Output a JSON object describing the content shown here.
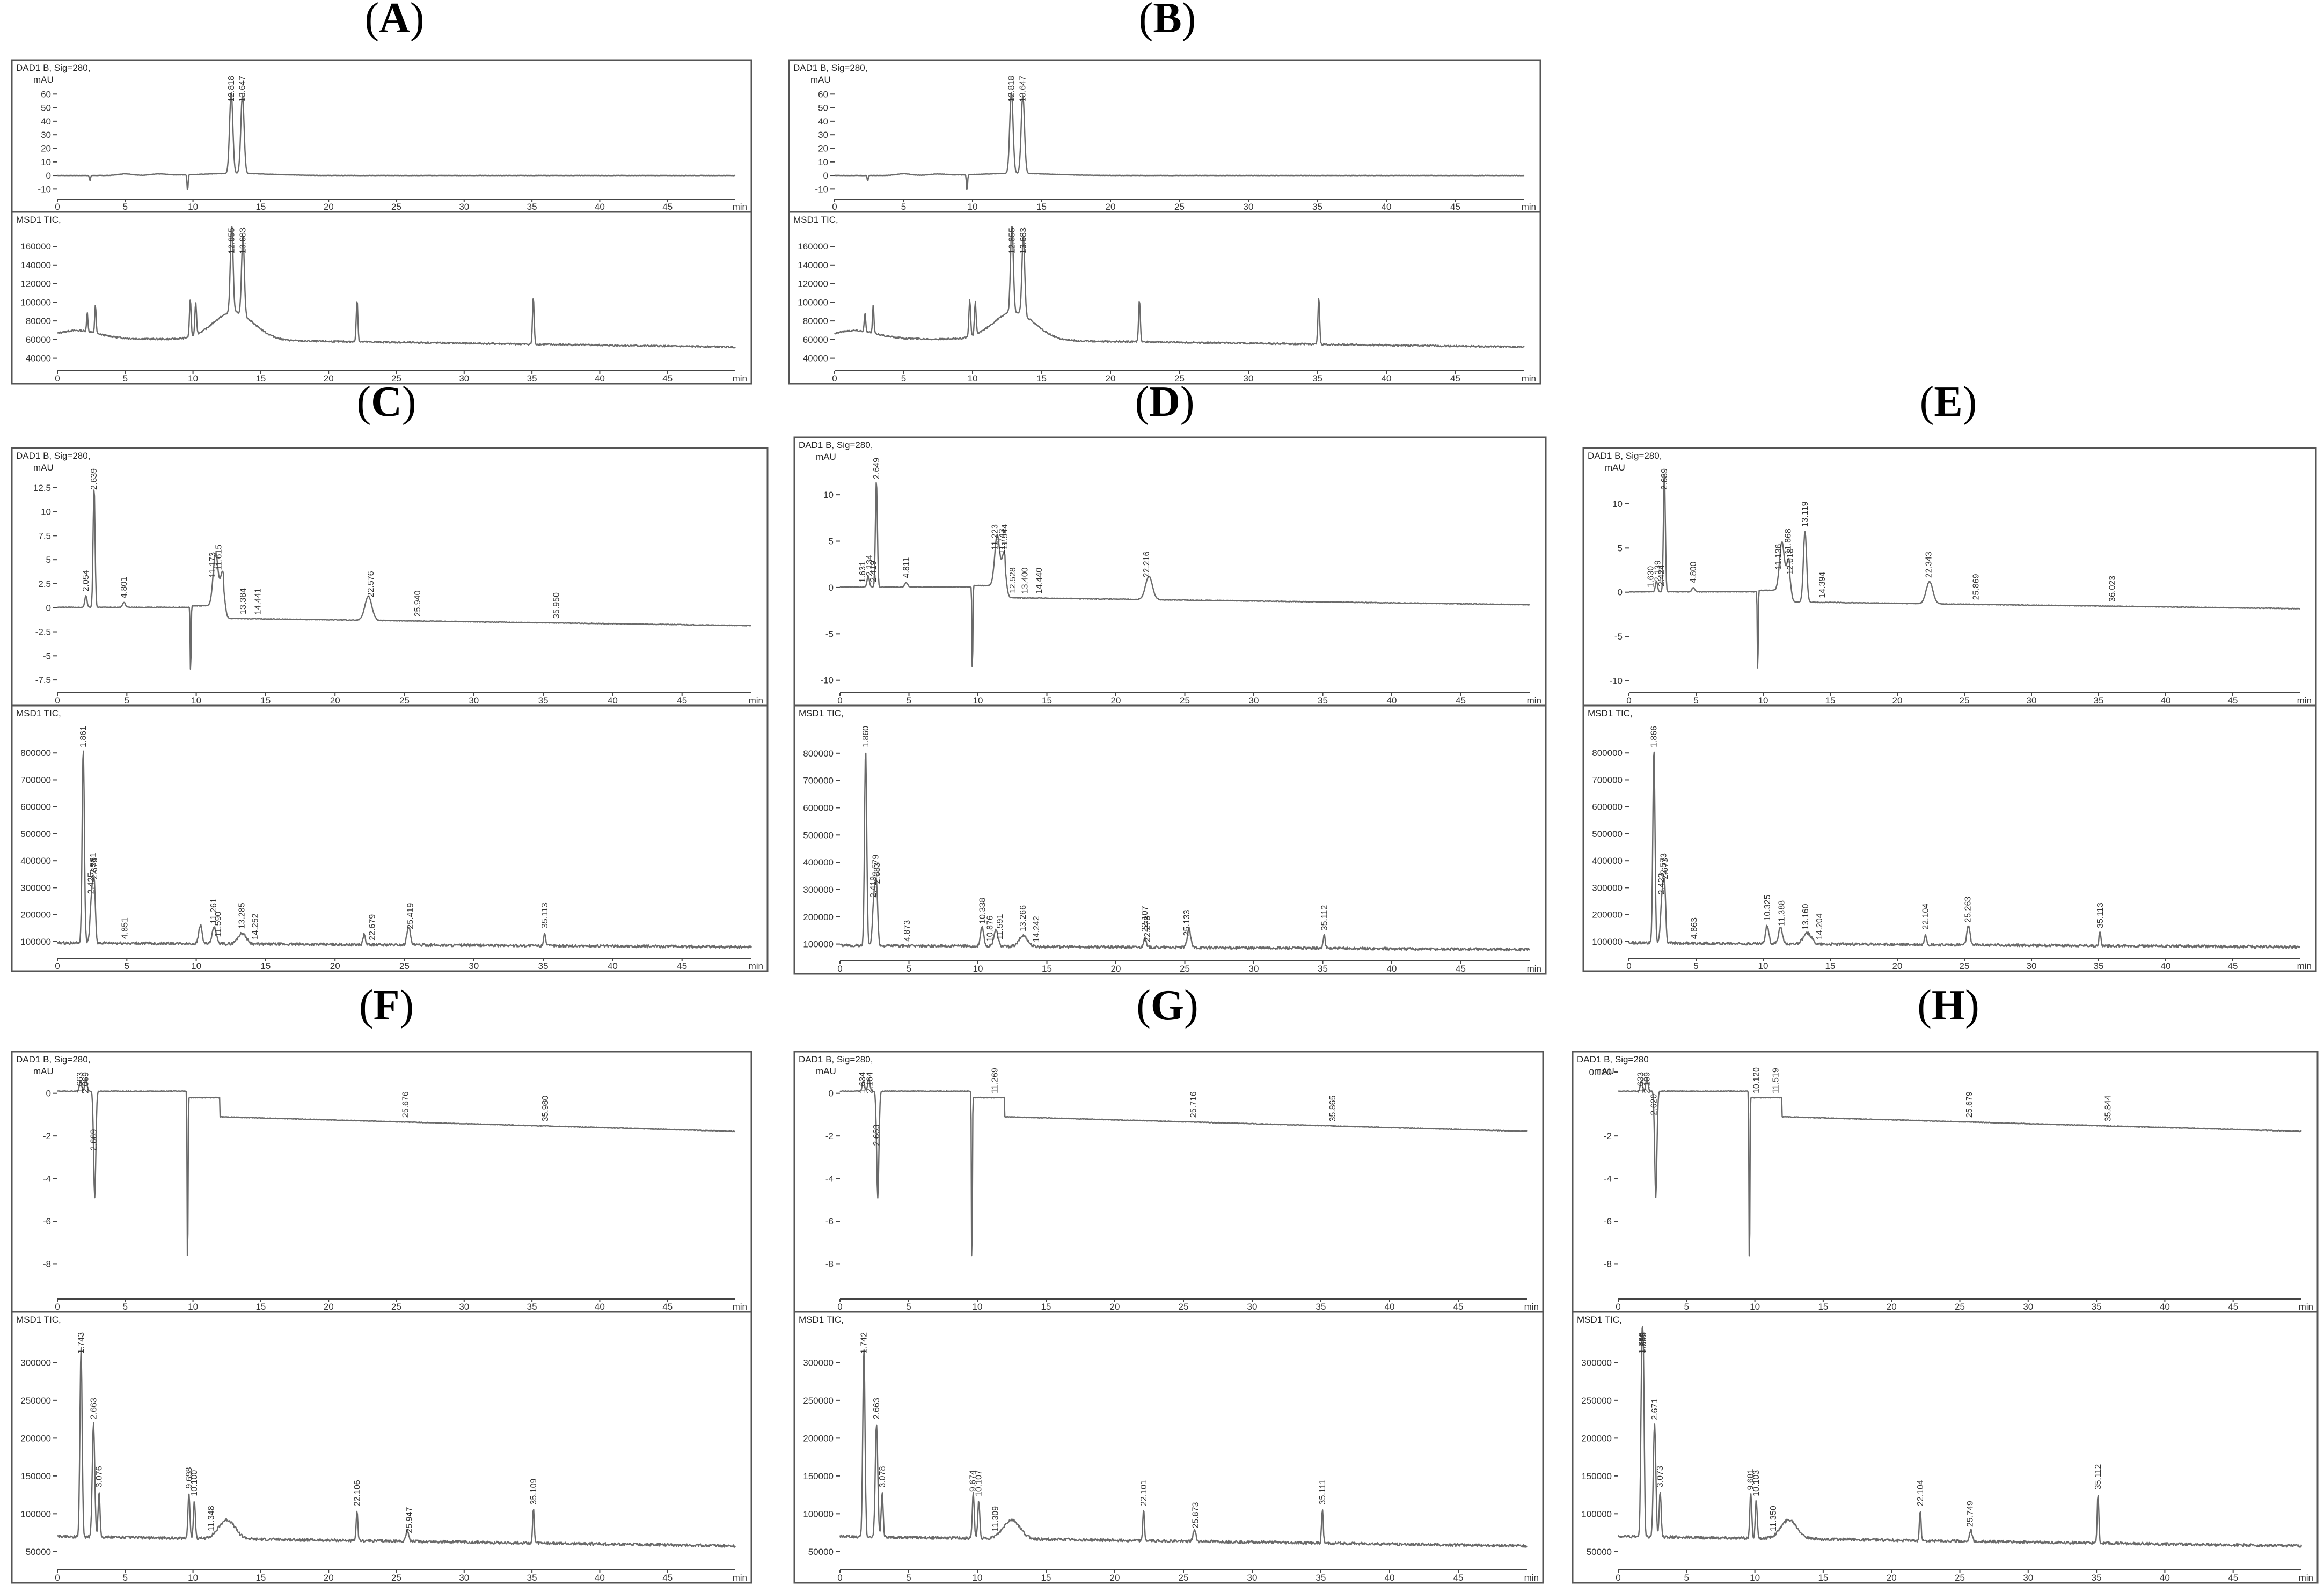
{
  "figure": {
    "panels": [
      {
        "id": "A",
        "label": "A",
        "y_labels": [
          "60",
          "50",
          "40",
          "30",
          "20",
          "10",
          "0",
          "-10"
        ],
        "tic_labels": [
          "160000",
          "140000",
          "120000",
          "100000",
          "80000",
          "60000",
          "40000"
        ]
      },
      {
        "id": "B",
        "label": "B",
        "y_labels": [
          "60",
          "50",
          "40",
          "30",
          "20",
          "10",
          "0",
          "-10"
        ],
        "tic_labels": [
          "160000",
          "140000",
          "120000",
          "100000",
          "80000",
          "60000",
          "40000"
        ]
      },
      {
        "id": "C",
        "label": "C",
        "y_labels": [
          "12.5",
          "10",
          "7.5",
          "5",
          "2.5",
          "0",
          "-2.5",
          "-5",
          "-7.5"
        ],
        "tic_labels": [
          "800000",
          "700000",
          "600000",
          "500000",
          "400000",
          "300000",
          "200000",
          "100000"
        ]
      },
      {
        "id": "D",
        "label": "D",
        "y_labels": [
          "10",
          "5",
          "0",
          "-5",
          "-10"
        ],
        "tic_labels": [
          "800000",
          "700000",
          "600000",
          "500000",
          "400000",
          "300000",
          "200000",
          "100000"
        ]
      },
      {
        "id": "E",
        "label": "E",
        "y_labels": [
          "10",
          "5",
          "0",
          "-5",
          "-10"
        ],
        "tic_labels": [
          "800000",
          "700000",
          "600000",
          "500000",
          "400000",
          "300000",
          "200000",
          "100000"
        ]
      },
      {
        "id": "F",
        "label": "F",
        "y_labels": [
          "0",
          "-2",
          "-4",
          "-6",
          "-8"
        ],
        "tic_labels": [
          "300000",
          "250000",
          "200000",
          "150000",
          "100000",
          "50000"
        ]
      },
      {
        "id": "G",
        "label": "G",
        "y_labels": [
          "0",
          "-2",
          "-4",
          "-6",
          "-8"
        ],
        "tic_labels": [
          "300000",
          "250000",
          "200000",
          "150000",
          "100000",
          "50000"
        ]
      },
      {
        "id": "H",
        "label": "H",
        "y_labels": [
          "0.120",
          "-2",
          "-4",
          "-6",
          "-8"
        ],
        "tic_labels": [
          "300000",
          "250000",
          "200000",
          "150000",
          "100000",
          "50000"
        ]
      }
    ]
  },
  "chart_data": [
    {
      "panel": "A",
      "type": "line",
      "dad": {
        "signal": "DAD1 B, Sig=280,",
        "unit": "mAU",
        "ylim": [
          -15,
          70
        ],
        "peaks": [
          {
            "x": 12.818,
            "label": "12.818"
          },
          {
            "x": 13.647,
            "label": "13.647"
          }
        ]
      },
      "tic": {
        "signal": "MSD1 TIC,",
        "ylim": [
          30000,
          175000
        ],
        "peaks": [
          {
            "x": 12.855,
            "label": "12.855"
          },
          {
            "x": 13.683,
            "label": "13.683"
          }
        ]
      },
      "xlim": [
        0,
        50
      ],
      "xticks": [
        0,
        5,
        10,
        15,
        20,
        25,
        30,
        35,
        40,
        45
      ],
      "xunit": "min"
    },
    {
      "panel": "B",
      "type": "line",
      "dad": {
        "signal": "DAD1 B, Sig=280,",
        "unit": "mAU",
        "ylim": [
          -15,
          70
        ],
        "peaks": [
          {
            "x": 12.818,
            "label": "12.818"
          },
          {
            "x": 13.647,
            "label": "13.647"
          }
        ]
      },
      "tic": {
        "signal": "MSD1 TIC,",
        "ylim": [
          30000,
          175000
        ],
        "peaks": [
          {
            "x": 12.855,
            "label": "12.855"
          },
          {
            "x": 13.683,
            "label": "13.683"
          }
        ]
      },
      "xlim": [
        0,
        50
      ],
      "xticks": [
        0,
        5,
        10,
        15,
        20,
        25,
        30,
        35,
        40,
        45
      ],
      "xunit": "min"
    },
    {
      "panel": "C",
      "type": "line",
      "dad": {
        "signal": "DAD1 B, Sig=280,",
        "unit": "mAU",
        "ylim": [
          -8.5,
          14.5
        ],
        "peaks": [
          {
            "x": 2.054,
            "label": "2.054"
          },
          {
            "x": 2.639,
            "label": "2.639"
          },
          {
            "x": 4.801,
            "label": "4.801"
          },
          {
            "x": 11.173,
            "label": "11.173"
          },
          {
            "x": 11.615,
            "label": "11.615"
          },
          {
            "x": 13.384,
            "label": "13.384"
          },
          {
            "x": 14.441,
            "label": "14.441"
          },
          {
            "x": 22.576,
            "label": "22.576"
          },
          {
            "x": 25.94,
            "label": "25.940"
          },
          {
            "x": 35.95,
            "label": "35.950"
          }
        ]
      },
      "tic": {
        "signal": "MSD1 TIC,",
        "ylim": [
          50000,
          900000
        ],
        "peaks": [
          {
            "x": 1.861,
            "label": "1.861"
          },
          {
            "x": 2.425,
            "label": "2.425"
          },
          {
            "x": 2.581,
            "label": "2.581"
          },
          {
            "x": 2.673,
            "label": "2.673"
          },
          {
            "x": 4.851,
            "label": "4.851"
          },
          {
            "x": 11.261,
            "label": "11.261"
          },
          {
            "x": 11.59,
            "label": "11.590"
          },
          {
            "x": 13.285,
            "label": "13.285"
          },
          {
            "x": 14.252,
            "label": "14.252"
          },
          {
            "x": 22.679,
            "label": "22.679"
          },
          {
            "x": 25.419,
            "label": "25.419"
          },
          {
            "x": 35.113,
            "label": "35.113"
          }
        ]
      },
      "xlim": [
        0,
        50
      ],
      "xticks": [
        0,
        5,
        10,
        15,
        20,
        25,
        30,
        35,
        40,
        45
      ],
      "xunit": "min"
    },
    {
      "panel": "D",
      "type": "line",
      "dad": {
        "signal": "DAD1 B, Sig=280,",
        "unit": "mAU",
        "ylim": [
          -11,
          14
        ],
        "peaks": [
          {
            "x": 1.631,
            "label": "1.631"
          },
          {
            "x": 2.134,
            "label": "2.134"
          },
          {
            "x": 2.419,
            "label": "2.419"
          },
          {
            "x": 2.649,
            "label": "2.649"
          },
          {
            "x": 4.811,
            "label": "4.811"
          },
          {
            "x": 11.223,
            "label": "11.223"
          },
          {
            "x": 11.743,
            "label": "11.743"
          },
          {
            "x": 11.944,
            "label": "11.944"
          },
          {
            "x": 12.528,
            "label": "12.528"
          },
          {
            "x": 13.4,
            "label": "13.400"
          },
          {
            "x": 14.44,
            "label": "14.440"
          },
          {
            "x": 22.216,
            "label": "22.216"
          }
        ]
      },
      "tic": {
        "signal": "MSD1 TIC,",
        "ylim": [
          50000,
          900000
        ],
        "peaks": [
          {
            "x": 1.86,
            "label": "1.860"
          },
          {
            "x": 2.419,
            "label": "2.419"
          },
          {
            "x": 2.579,
            "label": "2.579"
          },
          {
            "x": 2.683,
            "label": "2.683"
          },
          {
            "x": 4.873,
            "label": "4.873"
          },
          {
            "x": 10.338,
            "label": "10.338"
          },
          {
            "x": 10.876,
            "label": "10.876"
          },
          {
            "x": 11.591,
            "label": "11.591"
          },
          {
            "x": 13.266,
            "label": "13.266"
          },
          {
            "x": 14.242,
            "label": "14.242"
          },
          {
            "x": 22.107,
            "label": "22.107"
          },
          {
            "x": 22.278,
            "label": "22.278"
          },
          {
            "x": 25.133,
            "label": "25.133"
          },
          {
            "x": 35.112,
            "label": "35.112"
          }
        ]
      },
      "xlim": [
        0,
        50
      ],
      "xticks": [
        0,
        5,
        10,
        15,
        20,
        25,
        30,
        35,
        40,
        45
      ],
      "xunit": "min"
    },
    {
      "panel": "E",
      "type": "line",
      "dad": {
        "signal": "DAD1 B, Sig=280,",
        "unit": "mAU",
        "ylim": [
          -11,
          14
        ],
        "peaks": [
          {
            "x": 1.63,
            "label": "1.630"
          },
          {
            "x": 2.139,
            "label": "2.139"
          },
          {
            "x": 2.424,
            "label": "2.424"
          },
          {
            "x": 2.639,
            "label": "2.639"
          },
          {
            "x": 4.8,
            "label": "4.800"
          },
          {
            "x": 11.136,
            "label": "11.136"
          },
          {
            "x": 11.868,
            "label": "11.868"
          },
          {
            "x": 12.018,
            "label": "12.018"
          },
          {
            "x": 13.119,
            "label": "13.119"
          },
          {
            "x": 14.394,
            "label": "14.394"
          },
          {
            "x": 22.343,
            "label": "22.343"
          },
          {
            "x": 25.869,
            "label": "25.869"
          },
          {
            "x": 36.023,
            "label": "36.023"
          }
        ]
      },
      "tic": {
        "signal": "MSD1 TIC,",
        "ylim": [
          50000,
          900000
        ],
        "peaks": [
          {
            "x": 1.866,
            "label": "1.866"
          },
          {
            "x": 2.423,
            "label": "2.423"
          },
          {
            "x": 2.573,
            "label": "2.573"
          },
          {
            "x": 2.673,
            "label": "2.673"
          },
          {
            "x": 4.863,
            "label": "4.863"
          },
          {
            "x": 10.325,
            "label": "10.325"
          },
          {
            "x": 11.388,
            "label": "11.388"
          },
          {
            "x": 13.16,
            "label": "13.160"
          },
          {
            "x": 14.204,
            "label": "14.204"
          },
          {
            "x": 22.104,
            "label": "22.104"
          },
          {
            "x": 25.263,
            "label": "25.263"
          },
          {
            "x": 35.113,
            "label": "35.113"
          }
        ]
      },
      "xlim": [
        0,
        50
      ],
      "xticks": [
        0,
        5,
        10,
        15,
        20,
        25,
        30,
        35,
        40,
        45
      ],
      "xunit": "min"
    },
    {
      "panel": "F",
      "type": "line",
      "dad": {
        "signal": "DAD1 B, Sig=280,",
        "unit": "mAU",
        "ylim": [
          -9.5,
          1
        ],
        "peaks": [
          {
            "x": 1.663,
            "label": "1.663"
          },
          {
            "x": 2.069,
            "label": "2.069"
          },
          {
            "x": 2.669,
            "label": "2.669"
          },
          {
            "x": 25.676,
            "label": "25.676"
          },
          {
            "x": 35.98,
            "label": "35.980"
          }
        ]
      },
      "tic": {
        "signal": "MSD1 TIC,",
        "ylim": [
          30000,
          340000
        ],
        "peaks": [
          {
            "x": 1.743,
            "label": "1.743"
          },
          {
            "x": 2.663,
            "label": "2.663"
          },
          {
            "x": 3.076,
            "label": "3.076"
          },
          {
            "x": 9.698,
            "label": "9.698"
          },
          {
            "x": 10.1,
            "label": "10.100"
          },
          {
            "x": 11.348,
            "label": "11.348"
          },
          {
            "x": 22.106,
            "label": "22.106"
          },
          {
            "x": 25.947,
            "label": "25.947"
          },
          {
            "x": 35.109,
            "label": "35.109"
          }
        ]
      },
      "xlim": [
        0,
        50
      ],
      "xticks": [
        0,
        5,
        10,
        15,
        20,
        25,
        30,
        35,
        40,
        45
      ],
      "xunit": "min"
    },
    {
      "panel": "G",
      "type": "line",
      "dad": {
        "signal": "DAD1 B, Sig=280,",
        "unit": "mAU",
        "ylim": [
          -9.5,
          1
        ],
        "peaks": [
          {
            "x": 1.634,
            "label": "1.634"
          },
          {
            "x": 2.164,
            "label": "2.164"
          },
          {
            "x": 2.663,
            "label": "2.663"
          },
          {
            "x": 11.269,
            "label": "11.269"
          },
          {
            "x": 25.716,
            "label": "25.716"
          },
          {
            "x": 35.865,
            "label": "35.865"
          }
        ]
      },
      "tic": {
        "signal": "MSD1 TIC,",
        "ylim": [
          30000,
          340000
        ],
        "peaks": [
          {
            "x": 1.742,
            "label": "1.742"
          },
          {
            "x": 2.663,
            "label": "2.663"
          },
          {
            "x": 3.078,
            "label": "3.078"
          },
          {
            "x": 9.674,
            "label": "9.674"
          },
          {
            "x": 10.107,
            "label": "10.107"
          },
          {
            "x": 11.309,
            "label": "11.309"
          },
          {
            "x": 22.101,
            "label": "22.101"
          },
          {
            "x": 25.873,
            "label": "25.873"
          },
          {
            "x": 35.111,
            "label": "35.111"
          }
        ]
      },
      "xlim": [
        0,
        50
      ],
      "xticks": [
        0,
        5,
        10,
        15,
        20,
        25,
        30,
        35,
        40,
        45
      ],
      "xunit": "min"
    },
    {
      "panel": "H",
      "type": "line",
      "dad": {
        "signal": "DAD1 B, Sig=280",
        "unit": "mAU",
        "ylim": [
          -9.5,
          1
        ],
        "peaks": [
          {
            "x": 1.633,
            "label": "1.633"
          },
          {
            "x": 2.109,
            "label": "2.109"
          },
          {
            "x": 2.62,
            "label": "2.620"
          },
          {
            "x": 10.12,
            "label": "10.120"
          },
          {
            "x": 11.519,
            "label": "11.519"
          },
          {
            "x": 25.679,
            "label": "25.679"
          },
          {
            "x": 35.844,
            "label": "35.844"
          }
        ]
      },
      "tic": {
        "signal": "MSD1 TIC,",
        "ylim": [
          30000,
          340000
        ],
        "peaks": [
          {
            "x": 1.739,
            "label": "1.739"
          },
          {
            "x": 1.855,
            "label": "1.855"
          },
          {
            "x": 2.671,
            "label": "2.671"
          },
          {
            "x": 3.073,
            "label": "3.073"
          },
          {
            "x": 9.681,
            "label": "9.681"
          },
          {
            "x": 10.103,
            "label": "10.103"
          },
          {
            "x": 11.35,
            "label": "11.350"
          },
          {
            "x": 22.104,
            "label": "22.104"
          },
          {
            "x": 25.749,
            "label": "25.749"
          },
          {
            "x": 35.112,
            "label": "35.112"
          }
        ]
      },
      "xlim": [
        0,
        50
      ],
      "xticks": [
        0,
        5,
        10,
        15,
        20,
        25,
        30,
        35,
        40,
        45
      ],
      "xunit": "min"
    }
  ]
}
